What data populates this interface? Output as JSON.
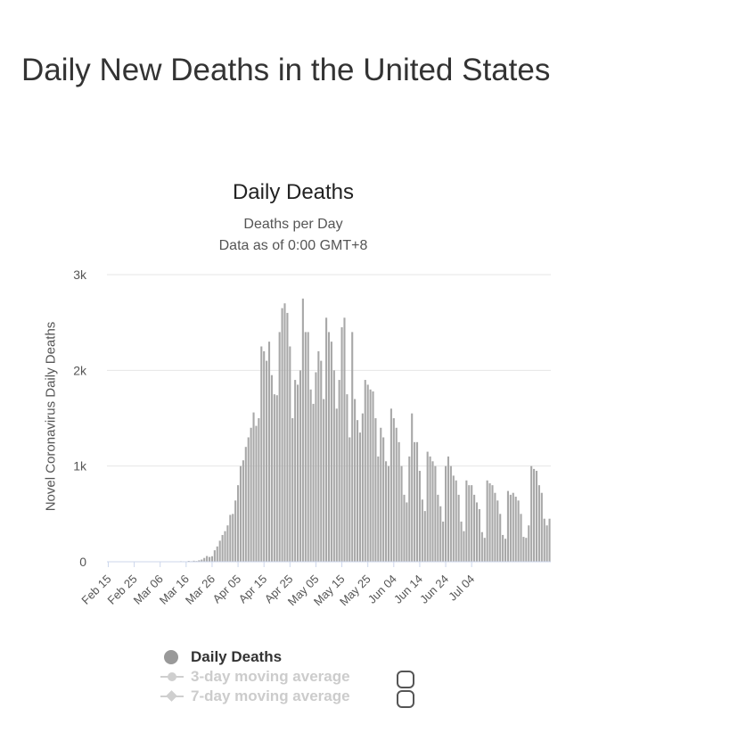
{
  "page": {
    "title": "Daily New Deaths in the United States"
  },
  "chart_data": {
    "type": "bar",
    "title": "Daily Deaths",
    "subtitle_line1": "Deaths per Day",
    "subtitle_line2": "Data as of 0:00 GMT+8",
    "ylabel": "Novel Coronavirus Daily Deaths",
    "xlabel": "",
    "ylim": [
      0,
      3000
    ],
    "y_ticks": [
      0,
      1000,
      2000,
      3000
    ],
    "y_tick_labels": [
      "0",
      "1k",
      "2k",
      "3k"
    ],
    "x_tick_labels": [
      "Feb 15",
      "Feb 25",
      "Mar 06",
      "Mar 16",
      "Mar 26",
      "Apr 05",
      "Apr 15",
      "Apr 25",
      "May 05",
      "May 15",
      "May 25",
      "Jun 04",
      "Jun 14",
      "Jun 24",
      "Jul 04"
    ],
    "x_tick_interval_days": 10,
    "start_date": "Feb 15",
    "grid": true,
    "legend_position": "bottom",
    "bar_color": "#a8a8a8",
    "series": [
      {
        "name": "Daily Deaths",
        "values": [
          0,
          0,
          0,
          0,
          0,
          0,
          0,
          0,
          0,
          0,
          0,
          0,
          0,
          0,
          1,
          0,
          1,
          0,
          1,
          1,
          1,
          2,
          1,
          1,
          3,
          1,
          3,
          2,
          6,
          5,
          4,
          9,
          6,
          11,
          8,
          15,
          23,
          40,
          60,
          50,
          58,
          120,
          160,
          220,
          280,
          320,
          380,
          490,
          500,
          640,
          800,
          1000,
          1060,
          1200,
          1300,
          1400,
          1560,
          1420,
          1500,
          2250,
          2200,
          2100,
          2300,
          1950,
          1750,
          1740,
          2400,
          2650,
          2700,
          2600,
          2250,
          1500,
          1900,
          1850,
          2000,
          2750,
          2400,
          2400,
          1800,
          1650,
          1980,
          2200,
          2100,
          1700,
          2550,
          2400,
          2300,
          2000,
          1600,
          1900,
          2450,
          2550,
          1750,
          1300,
          2400,
          1700,
          1480,
          1350,
          1550,
          1900,
          1850,
          1800,
          1780,
          1500,
          1100,
          1400,
          1300,
          1050,
          1000,
          1600,
          1500,
          1400,
          1250,
          1000,
          700,
          620,
          1100,
          1550,
          1250,
          1250,
          950,
          650,
          530,
          1150,
          1100,
          1050,
          1000,
          700,
          580,
          420,
          1000,
          1100,
          1000,
          900,
          850,
          700,
          420,
          320,
          850,
          800,
          800,
          700,
          620,
          550,
          310,
          250,
          850,
          820,
          800,
          720,
          640,
          500,
          280,
          240,
          740,
          700,
          720,
          680,
          640,
          500,
          260,
          250,
          380,
          1000,
          970,
          950,
          800,
          720,
          450,
          380,
          450
        ]
      },
      {
        "name": "3-day moving average",
        "visible": false
      },
      {
        "name": "7-day moving average",
        "visible": false
      }
    ]
  },
  "legend": {
    "items": [
      {
        "label": "Daily Deaths",
        "icon": "circle",
        "color": "#999999",
        "active": true
      },
      {
        "label": "3-day moving average",
        "icon": "line-circle",
        "color": "#cccccc",
        "active": false
      },
      {
        "label": "7-day moving average",
        "icon": "line-diamond",
        "color": "#cccccc",
        "active": false
      }
    ]
  }
}
